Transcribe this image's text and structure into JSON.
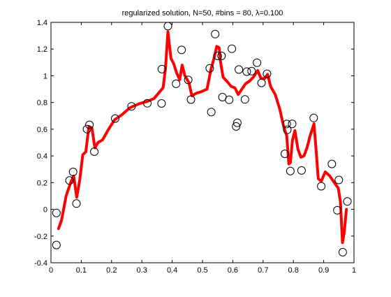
{
  "chart_data": {
    "type": "scatter",
    "title": "regularized solution, N=50, #bins = 80, λ=0.100",
    "xlabel": "",
    "ylabel": "",
    "xlim": [
      0,
      1
    ],
    "ylim": [
      -0.4,
      1.4
    ],
    "x_ticks": [
      0,
      0.1,
      0.2,
      0.3,
      0.4,
      0.5,
      0.6,
      0.7,
      0.8,
      0.9,
      1
    ],
    "x_tick_labels": [
      "0",
      "0.1",
      "0.2",
      "0.3",
      "0.4",
      "0.5",
      "0.6",
      "0.7",
      "0.8",
      "0.9",
      "1"
    ],
    "y_ticks": [
      -0.4,
      -0.2,
      0,
      0.2,
      0.4,
      0.6,
      0.8,
      1,
      1.2,
      1.4
    ],
    "y_tick_labels": [
      "-0.4",
      "-0.2",
      "0",
      "0.2",
      "0.4",
      "0.6",
      "0.8",
      "1",
      "1.2",
      "1.4"
    ],
    "grid": false,
    "series": [
      {
        "kind": "scatter",
        "marker": "open-circle",
        "color": "#000000",
        "points": [
          [
            0.018,
            -0.027
          ],
          [
            0.018,
            -0.267
          ],
          [
            0.061,
            0.216
          ],
          [
            0.073,
            0.28
          ],
          [
            0.084,
            0.043
          ],
          [
            0.119,
            0.601
          ],
          [
            0.127,
            0.633
          ],
          [
            0.143,
            0.432
          ],
          [
            0.212,
            0.68
          ],
          [
            0.266,
            0.771
          ],
          [
            0.318,
            0.794
          ],
          [
            0.365,
            0.793
          ],
          [
            0.366,
            1.05
          ],
          [
            0.386,
            1.372
          ],
          [
            0.413,
            0.94
          ],
          [
            0.431,
            1.194
          ],
          [
            0.453,
            0.97
          ],
          [
            0.462,
            0.822
          ],
          [
            0.524,
            1.056
          ],
          [
            0.529,
            0.728
          ],
          [
            0.542,
            1.312
          ],
          [
            0.55,
            1.149
          ],
          [
            0.563,
            1.149
          ],
          [
            0.566,
            0.84
          ],
          [
            0.588,
            0.82
          ],
          [
            0.597,
            1.202
          ],
          [
            0.611,
            0.621
          ],
          [
            0.615,
            0.648
          ],
          [
            0.62,
            1.047
          ],
          [
            0.64,
            0.823
          ],
          [
            0.646,
            1.031
          ],
          [
            0.662,
            1.035
          ],
          [
            0.68,
            1.098
          ],
          [
            0.695,
            0.947
          ],
          [
            0.713,
            1.015
          ],
          [
            0.772,
            0.416
          ],
          [
            0.778,
            0.639
          ],
          [
            0.78,
            0.595
          ],
          [
            0.79,
            0.287
          ],
          [
            0.796,
            0.64
          ],
          [
            0.827,
            0.291
          ],
          [
            0.867,
            0.684
          ],
          [
            0.892,
            0.173
          ],
          [
            0.927,
            0.34
          ],
          [
            0.945,
            -0.007
          ],
          [
            0.95,
            0.22
          ],
          [
            0.963,
            -0.321
          ],
          [
            0.978,
            0.059
          ]
        ]
      },
      {
        "kind": "line",
        "color": "#ff0000",
        "points": [
          [
            0.025,
            -0.145
          ],
          [
            0.035,
            -0.08
          ],
          [
            0.05,
            0.1
          ],
          [
            0.065,
            0.2
          ],
          [
            0.075,
            0.25
          ],
          [
            0.085,
            0.09
          ],
          [
            0.095,
            0.22
          ],
          [
            0.105,
            0.41
          ],
          [
            0.115,
            0.43
          ],
          [
            0.125,
            0.62
          ],
          [
            0.135,
            0.61
          ],
          [
            0.145,
            0.46
          ],
          [
            0.155,
            0.5
          ],
          [
            0.17,
            0.52
          ],
          [
            0.19,
            0.6
          ],
          [
            0.21,
            0.67
          ],
          [
            0.235,
            0.71
          ],
          [
            0.26,
            0.76
          ],
          [
            0.29,
            0.79
          ],
          [
            0.32,
            0.81
          ],
          [
            0.34,
            0.83
          ],
          [
            0.355,
            0.87
          ],
          [
            0.37,
            0.91
          ],
          [
            0.378,
            1.06
          ],
          [
            0.386,
            1.33
          ],
          [
            0.396,
            1.13
          ],
          [
            0.405,
            1.09
          ],
          [
            0.415,
            1.02
          ],
          [
            0.425,
            0.97
          ],
          [
            0.433,
            1.08
          ],
          [
            0.442,
            1.0
          ],
          [
            0.455,
            0.95
          ],
          [
            0.465,
            0.85
          ],
          [
            0.48,
            0.87
          ],
          [
            0.495,
            0.88
          ],
          [
            0.515,
            0.9
          ],
          [
            0.528,
            1.05
          ],
          [
            0.538,
            1.13
          ],
          [
            0.547,
            1.22
          ],
          [
            0.555,
            1.21
          ],
          [
            0.56,
            1.1
          ],
          [
            0.568,
            0.99
          ],
          [
            0.58,
            0.96
          ],
          [
            0.595,
            0.92
          ],
          [
            0.607,
            0.91
          ],
          [
            0.618,
            0.86
          ],
          [
            0.63,
            0.9
          ],
          [
            0.642,
            0.94
          ],
          [
            0.655,
            0.96
          ],
          [
            0.668,
            0.99
          ],
          [
            0.682,
            1.04
          ],
          [
            0.693,
            0.98
          ],
          [
            0.705,
            0.98
          ],
          [
            0.715,
            1.01
          ],
          [
            0.725,
            0.92
          ],
          [
            0.74,
            0.86
          ],
          [
            0.755,
            0.75
          ],
          [
            0.768,
            0.62
          ],
          [
            0.778,
            0.55
          ],
          [
            0.785,
            0.34
          ],
          [
            0.79,
            0.35
          ],
          [
            0.797,
            0.52
          ],
          [
            0.805,
            0.59
          ],
          [
            0.815,
            0.45
          ],
          [
            0.825,
            0.39
          ],
          [
            0.835,
            0.4
          ],
          [
            0.845,
            0.46
          ],
          [
            0.855,
            0.55
          ],
          [
            0.868,
            0.64
          ],
          [
            0.875,
            0.44
          ],
          [
            0.882,
            0.23
          ],
          [
            0.892,
            0.21
          ],
          [
            0.905,
            0.28
          ],
          [
            0.92,
            0.25
          ],
          [
            0.935,
            0.2
          ],
          [
            0.948,
            0.16
          ],
          [
            0.955,
            0.06
          ],
          [
            0.962,
            -0.25
          ],
          [
            0.968,
            -0.17
          ],
          [
            0.975,
            0.0
          ]
        ]
      }
    ]
  }
}
